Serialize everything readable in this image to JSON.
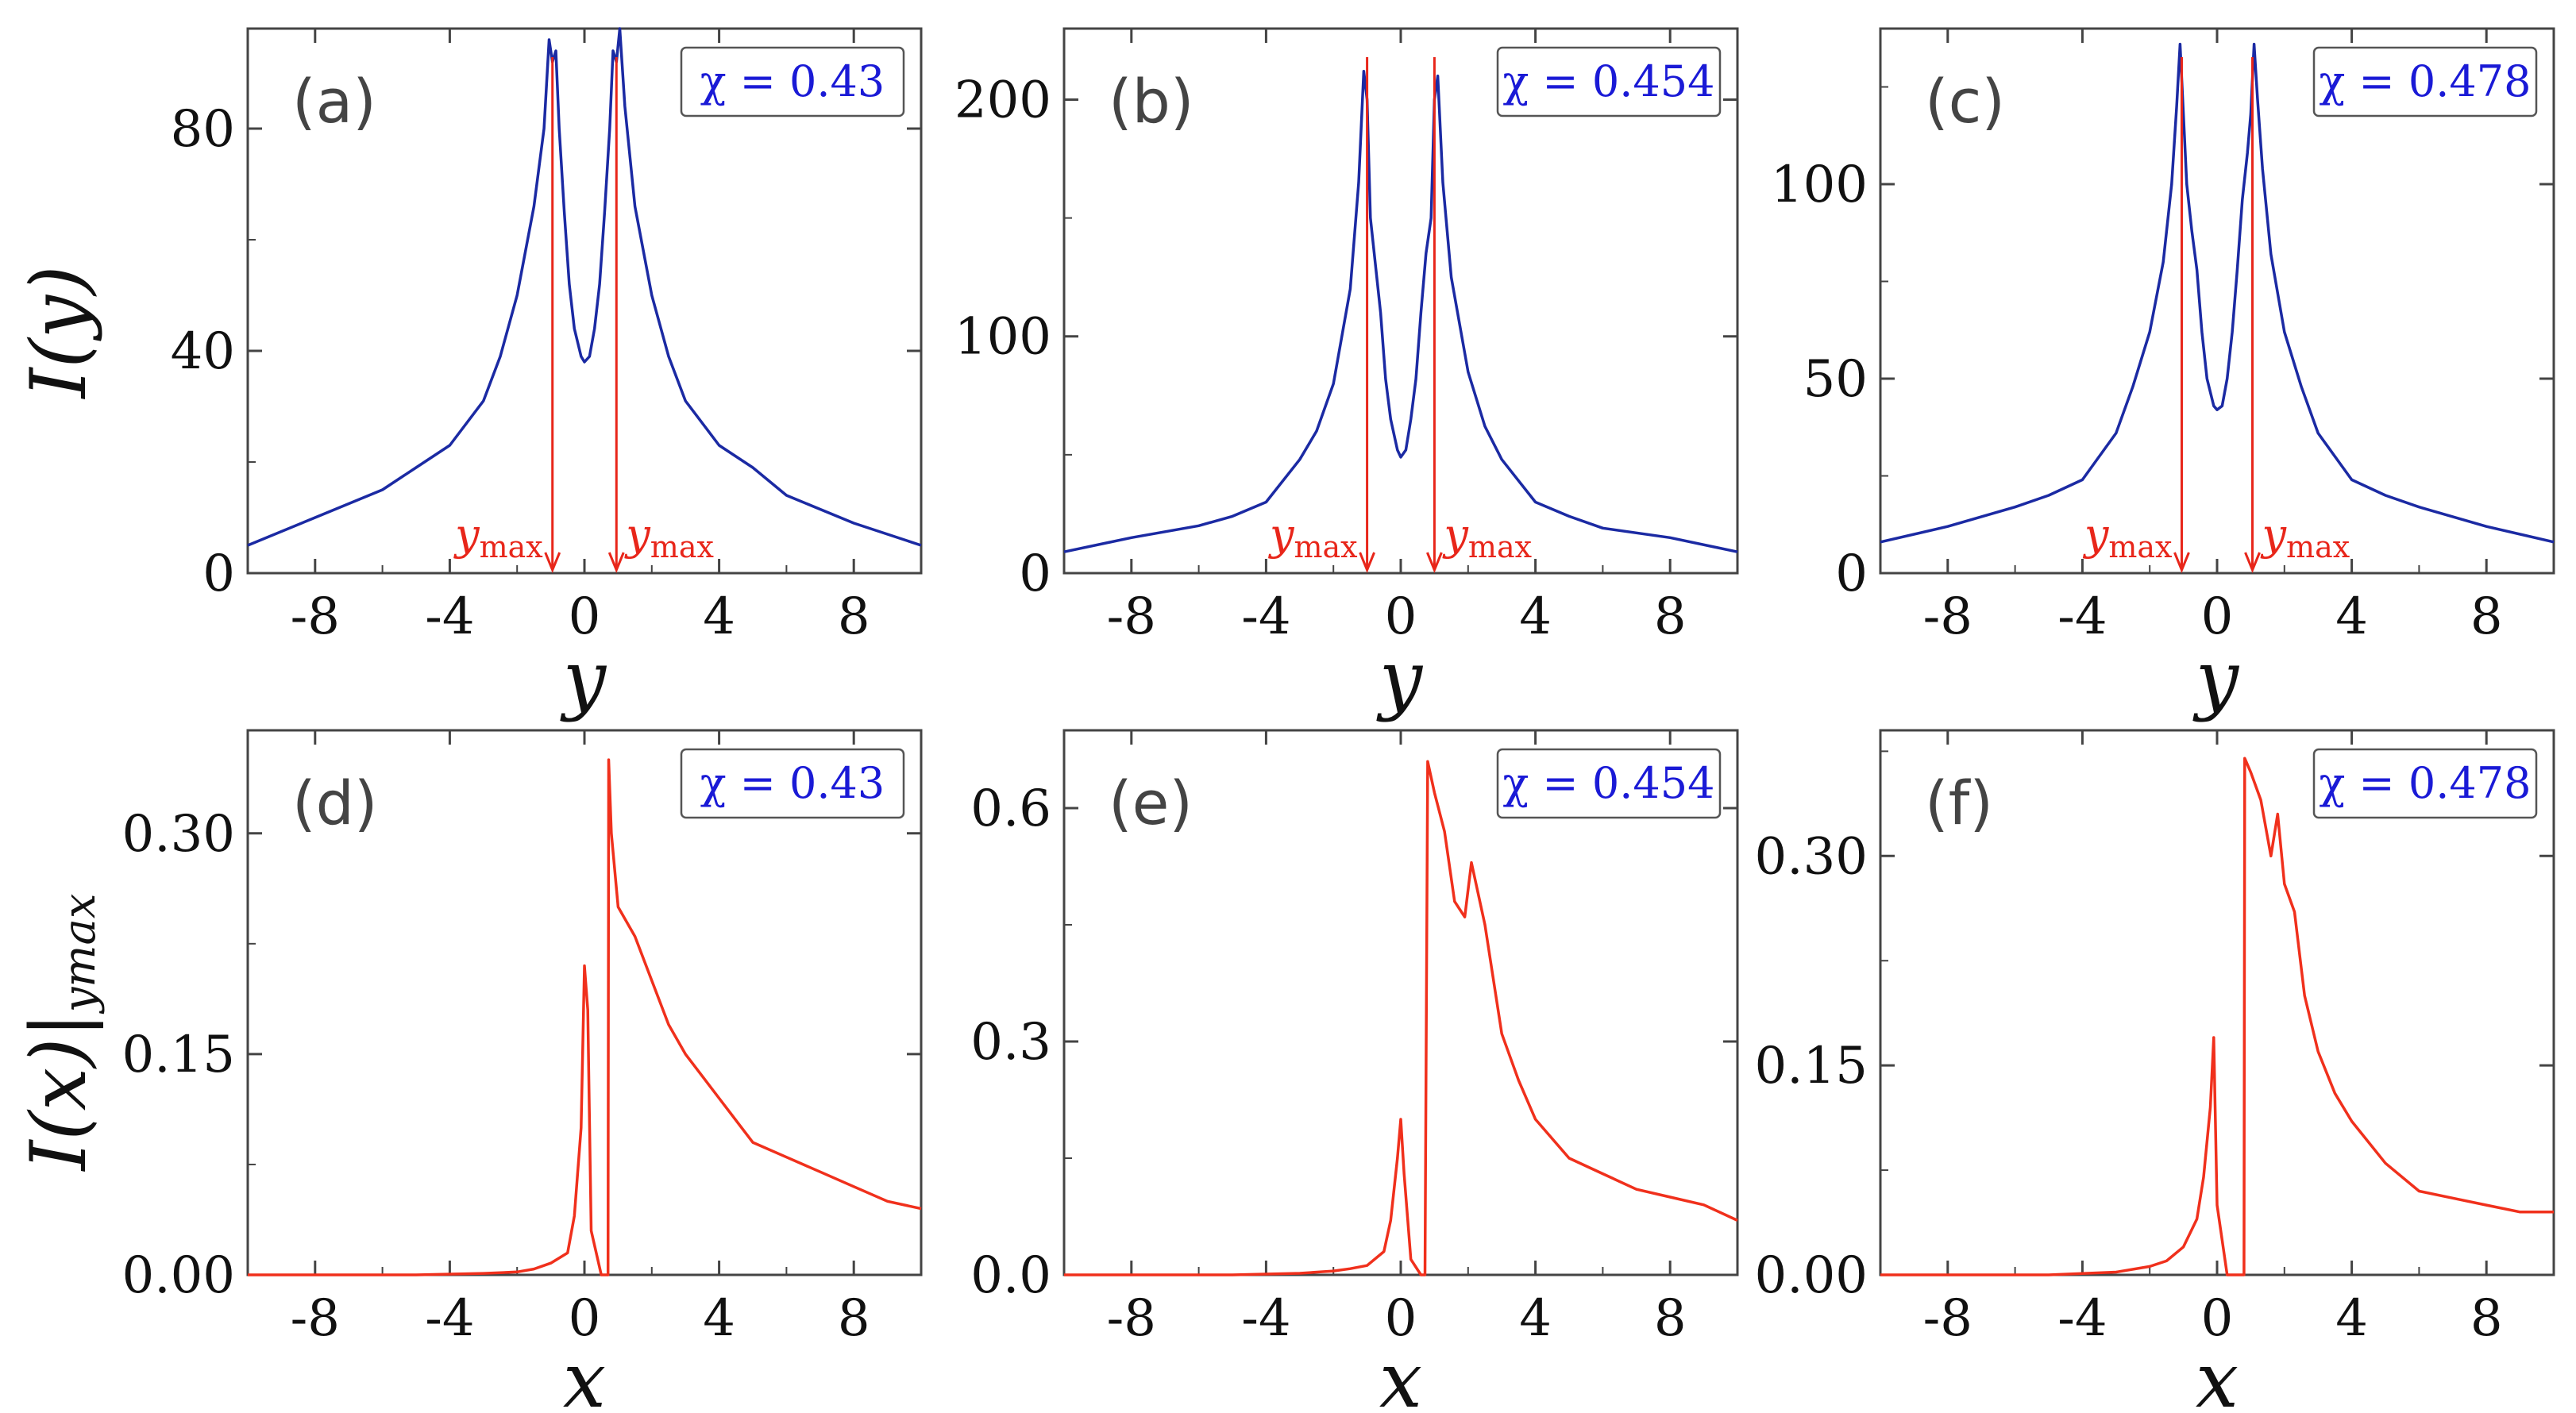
{
  "figure": {
    "ylabel_top": "I(y)",
    "ylabel_bottom": "I(x)|",
    "ylabel_bottom_sub": "ymax"
  },
  "colors": {
    "top_curve": "#1b2aa3",
    "bottom_curve": "#f0301c",
    "legend_text": "#1a1ad6",
    "marker": "#e8261a"
  },
  "chart_data": [
    {
      "type": "line",
      "panel": "(a)",
      "legend": "χ = 0.43",
      "xlabel": "y",
      "ylabel": "I(y)",
      "xlim": [
        -10,
        10
      ],
      "ylim": [
        0,
        98
      ],
      "xticks": [
        -8,
        -4,
        0,
        4,
        8
      ],
      "xtick_labels": [
        "-8",
        "-4",
        "0",
        "4",
        "8"
      ],
      "yticks": [
        0,
        40,
        80
      ],
      "ytick_labels": [
        "0",
        "40",
        "80"
      ],
      "markers": [
        {
          "x": -0.95,
          "label": "y",
          "sub": "max"
        },
        {
          "x": 0.95,
          "label": "y",
          "sub": "max"
        }
      ],
      "series": [
        {
          "name": "I(y)",
          "x": [
            -10,
            -8,
            -6,
            -5,
            -4,
            -3,
            -2.5,
            -2,
            -1.5,
            -1.2,
            -1.05,
            -0.95,
            -0.85,
            -0.75,
            -0.6,
            -0.45,
            -0.3,
            -0.1,
            0,
            0.15,
            0.3,
            0.45,
            0.6,
            0.75,
            0.85,
            0.95,
            1.05,
            1.2,
            1.5,
            2,
            2.5,
            3,
            4,
            5,
            6,
            8,
            10
          ],
          "y": [
            5,
            10,
            15,
            19,
            23,
            31,
            39,
            50,
            66,
            80,
            96,
            92,
            94,
            80,
            65,
            52,
            44,
            39,
            38,
            39,
            44,
            52,
            65,
            80,
            94,
            92,
            98,
            84,
            66,
            50,
            39,
            31,
            23,
            19,
            14,
            9,
            5
          ]
        }
      ]
    },
    {
      "type": "line",
      "panel": "(b)",
      "legend": "χ = 0.454",
      "xlabel": "y",
      "ylabel": "",
      "xlim": [
        -10,
        10
      ],
      "ylim": [
        0,
        230
      ],
      "xticks": [
        -8,
        -4,
        0,
        4,
        8
      ],
      "xtick_labels": [
        "-8",
        "-4",
        "0",
        "4",
        "8"
      ],
      "yticks": [
        0,
        100,
        200
      ],
      "ytick_labels": [
        "0",
        "100",
        "200"
      ],
      "markers": [
        {
          "x": -1.0,
          "label": "y",
          "sub": "max"
        },
        {
          "x": 1.0,
          "label": "y",
          "sub": "max"
        }
      ],
      "series": [
        {
          "name": "I(y)",
          "x": [
            -10,
            -8,
            -6,
            -5,
            -4,
            -3,
            -2.5,
            -2,
            -1.5,
            -1.25,
            -1.1,
            -1.0,
            -0.9,
            -0.75,
            -0.6,
            -0.45,
            -0.3,
            -0.1,
            0,
            0.15,
            0.3,
            0.45,
            0.6,
            0.75,
            0.9,
            1.0,
            1.1,
            1.25,
            1.5,
            2,
            2.5,
            3,
            4,
            5,
            6,
            8,
            10
          ],
          "y": [
            9,
            15,
            20,
            24,
            30,
            48,
            60,
            80,
            120,
            165,
            212,
            200,
            150,
            130,
            110,
            82,
            65,
            52,
            49,
            52,
            65,
            82,
            110,
            135,
            150,
            200,
            210,
            165,
            125,
            85,
            62,
            48,
            30,
            24,
            19,
            15,
            9
          ]
        }
      ]
    },
    {
      "type": "line",
      "panel": "(c)",
      "legend": "χ = 0.478",
      "xlabel": "y",
      "ylabel": "",
      "xlim": [
        -10,
        10
      ],
      "ylim": [
        0,
        140
      ],
      "xticks": [
        -8,
        -4,
        0,
        4,
        8
      ],
      "xtick_labels": [
        "-8",
        "-4",
        "0",
        "4",
        "8"
      ],
      "yticks": [
        0,
        50,
        100
      ],
      "ytick_labels": [
        "0",
        "50",
        "100"
      ],
      "markers": [
        {
          "x": -1.05,
          "label": "y",
          "sub": "max"
        },
        {
          "x": 1.05,
          "label": "y",
          "sub": "max"
        }
      ],
      "series": [
        {
          "name": "I(y)",
          "x": [
            -10,
            -8,
            -6,
            -5,
            -4,
            -3,
            -2.5,
            -2,
            -1.6,
            -1.35,
            -1.2,
            -1.1,
            -1.0,
            -0.9,
            -0.75,
            -0.6,
            -0.45,
            -0.3,
            -0.1,
            0,
            0.15,
            0.3,
            0.45,
            0.6,
            0.75,
            0.9,
            1.0,
            1.1,
            1.2,
            1.35,
            1.6,
            2,
            2.5,
            3,
            4,
            5,
            6,
            8,
            10
          ],
          "y": [
            8,
            12,
            17,
            20,
            24,
            36,
            48,
            62,
            80,
            100,
            120,
            136,
            118,
            100,
            88,
            78,
            62,
            50,
            43,
            42,
            43,
            50,
            62,
            78,
            96,
            108,
            118,
            136,
            122,
            104,
            82,
            62,
            48,
            36,
            24,
            20,
            17,
            12,
            8
          ]
        }
      ]
    },
    {
      "type": "line",
      "panel": "(d)",
      "legend": "χ = 0.43",
      "xlabel": "x",
      "ylabel": "I(x)|ymax",
      "xlim": [
        -10,
        10
      ],
      "ylim": [
        0,
        0.37
      ],
      "xticks": [
        -8,
        -4,
        0,
        4,
        8
      ],
      "xtick_labels": [
        "-8",
        "-4",
        "0",
        "4",
        "8"
      ],
      "yticks": [
        0,
        0.15,
        0.3
      ],
      "ytick_labels": [
        "0.00",
        "0.15",
        "0.30"
      ],
      "series": [
        {
          "name": "I(x)",
          "x": [
            -10,
            -5,
            -3,
            -2,
            -1.5,
            -1,
            -0.5,
            -0.3,
            -0.1,
            0,
            0.1,
            0.2,
            0.5,
            0.7,
            0.72,
            0.8,
            1,
            1.5,
            2,
            2.5,
            3,
            4,
            5,
            6,
            7,
            8,
            9,
            10
          ],
          "y": [
            0,
            0,
            0.001,
            0.002,
            0.004,
            0.008,
            0.015,
            0.04,
            0.1,
            0.21,
            0.18,
            0.03,
            0,
            0,
            0.35,
            0.3,
            0.25,
            0.23,
            0.2,
            0.17,
            0.15,
            0.12,
            0.09,
            0.08,
            0.07,
            0.06,
            0.05,
            0.045
          ]
        }
      ]
    },
    {
      "type": "line",
      "panel": "(e)",
      "legend": "χ = 0.454",
      "xlabel": "x",
      "ylabel": "",
      "xlim": [
        -10,
        10
      ],
      "ylim": [
        0,
        0.7
      ],
      "xticks": [
        -8,
        -4,
        0,
        4,
        8
      ],
      "xtick_labels": [
        "-8",
        "-4",
        "0",
        "4",
        "8"
      ],
      "yticks": [
        0,
        0.3,
        0.6
      ],
      "ytick_labels": [
        "0.0",
        "0.3",
        "0.6"
      ],
      "series": [
        {
          "name": "I(x)",
          "x": [
            -10,
            -5,
            -3,
            -2,
            -1.5,
            -1,
            -0.5,
            -0.3,
            -0.1,
            0,
            0.1,
            0.3,
            0.6,
            0.72,
            0.8,
            1,
            1.3,
            1.6,
            1.9,
            2.1,
            2.5,
            3,
            3.5,
            4,
            5,
            6,
            7,
            8,
            9,
            10
          ],
          "y": [
            0,
            0,
            0.002,
            0.005,
            0.008,
            0.012,
            0.03,
            0.07,
            0.15,
            0.2,
            0.13,
            0.02,
            0,
            0,
            0.66,
            0.62,
            0.57,
            0.48,
            0.46,
            0.53,
            0.45,
            0.31,
            0.25,
            0.2,
            0.15,
            0.13,
            0.11,
            0.1,
            0.09,
            0.07
          ]
        }
      ]
    },
    {
      "type": "line",
      "panel": "(f)",
      "legend": "χ = 0.478",
      "xlabel": "x",
      "ylabel": "",
      "xlim": [
        -10,
        10
      ],
      "ylim": [
        0,
        0.39
      ],
      "xticks": [
        -8,
        -4,
        0,
        4,
        8
      ],
      "xtick_labels": [
        "-8",
        "-4",
        "0",
        "4",
        "8"
      ],
      "yticks": [
        0,
        0.15,
        0.3
      ],
      "ytick_labels": [
        "0.00",
        "0.15",
        "0.30"
      ],
      "series": [
        {
          "name": "I(x)",
          "x": [
            -10,
            -5,
            -3,
            -2,
            -1.5,
            -1,
            -0.6,
            -0.4,
            -0.2,
            -0.1,
            0,
            0.3,
            0.8,
            0.82,
            1,
            1.3,
            1.6,
            1.8,
            2,
            2.3,
            2.6,
            3,
            3.5,
            4,
            5,
            6,
            7,
            8,
            9,
            10
          ],
          "y": [
            0,
            0,
            0.002,
            0.006,
            0.01,
            0.02,
            0.04,
            0.07,
            0.12,
            0.17,
            0.05,
            0,
            0,
            0.37,
            0.36,
            0.34,
            0.3,
            0.33,
            0.28,
            0.26,
            0.2,
            0.16,
            0.13,
            0.11,
            0.08,
            0.06,
            0.055,
            0.05,
            0.045,
            0.045
          ]
        }
      ]
    }
  ]
}
